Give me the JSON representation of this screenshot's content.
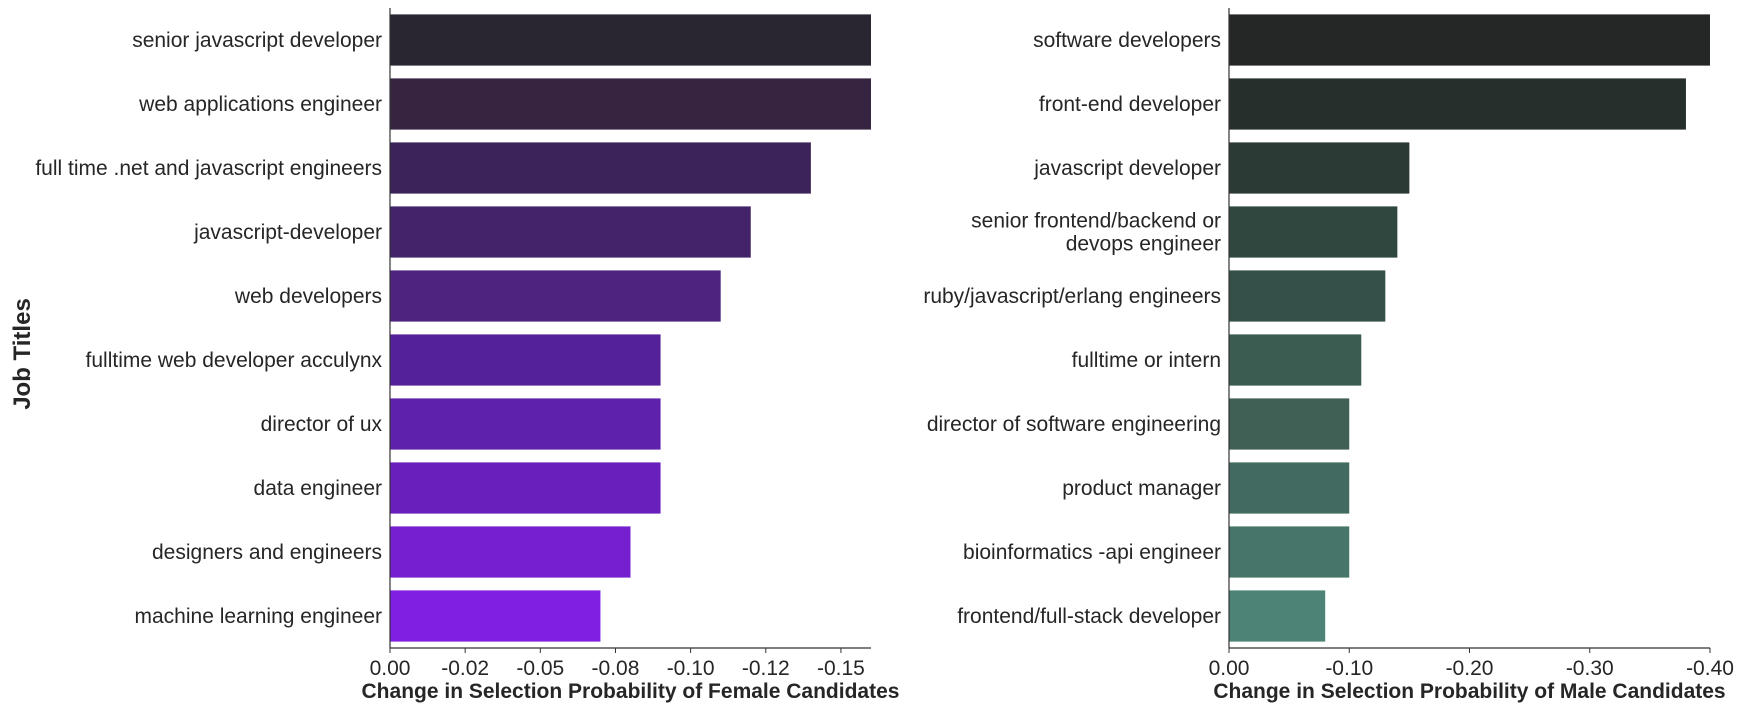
{
  "ylabel": "Job Titles",
  "chart_data": [
    {
      "type": "bar",
      "orientation": "horizontal",
      "xlabel": "Change in Selection Probability of Female Candidates",
      "ylabel": "Job Titles",
      "xlim": [
        0,
        -0.16
      ],
      "xticks": [
        0.0,
        -0.025,
        -0.05,
        -0.075,
        -0.1,
        -0.125,
        -0.15
      ],
      "xtick_labels": [
        "0.00",
        "-0.02",
        "-0.05",
        "-0.08",
        "-0.10",
        "-0.12",
        "-0.15"
      ],
      "categories": [
        [
          "senior javascript developer"
        ],
        [
          "web applications engineer"
        ],
        [
          "full time .net and javascript engineers"
        ],
        [
          "javascript-developer"
        ],
        [
          "web developers"
        ],
        [
          "fulltime web developer acculynx"
        ],
        [
          "director of ux"
        ],
        [
          "data engineer"
        ],
        [
          "designers and engineers"
        ],
        [
          "machine learning engineer"
        ]
      ],
      "values": [
        -0.16,
        -0.16,
        -0.14,
        -0.12,
        -0.11,
        -0.09,
        -0.09,
        -0.09,
        -0.08,
        -0.07
      ],
      "colors": [
        "#292631",
        "#362441",
        "#3d2458",
        "#44236a",
        "#4d2380",
        "#55219a",
        "#5e21ab",
        "#681fbc",
        "#751fd0",
        "#801ee2"
      ],
      "grid": false
    },
    {
      "type": "bar",
      "orientation": "horizontal",
      "xlabel": "Change in Selection Probability of Male Candidates",
      "xlim": [
        0,
        -0.4
      ],
      "xticks": [
        0.0,
        -0.1,
        -0.2,
        -0.3,
        -0.4
      ],
      "xtick_labels": [
        "0.00",
        "-0.10",
        "-0.20",
        "-0.30",
        "-0.40"
      ],
      "categories": [
        [
          "software developers"
        ],
        [
          "front-end developer"
        ],
        [
          "javascript developer"
        ],
        [
          "senior frontend/backend or",
          "devops engineer"
        ],
        [
          "ruby/javascript/erlang engineers"
        ],
        [
          "fulltime or intern"
        ],
        [
          "director of software engineering"
        ],
        [
          "product manager"
        ],
        [
          "bioinformatics -api engineer"
        ],
        [
          "frontend/full-stack developer"
        ]
      ],
      "values": [
        -0.4,
        -0.38,
        -0.15,
        -0.14,
        -0.13,
        -0.11,
        -0.1,
        -0.1,
        -0.1,
        -0.08
      ],
      "colors": [
        "#252727",
        "#272f2d",
        "#2c3a36",
        "#30473f",
        "#355048",
        "#3b5c51",
        "#405f55",
        "#436a60",
        "#467569",
        "#4d8376"
      ],
      "grid": false
    }
  ]
}
